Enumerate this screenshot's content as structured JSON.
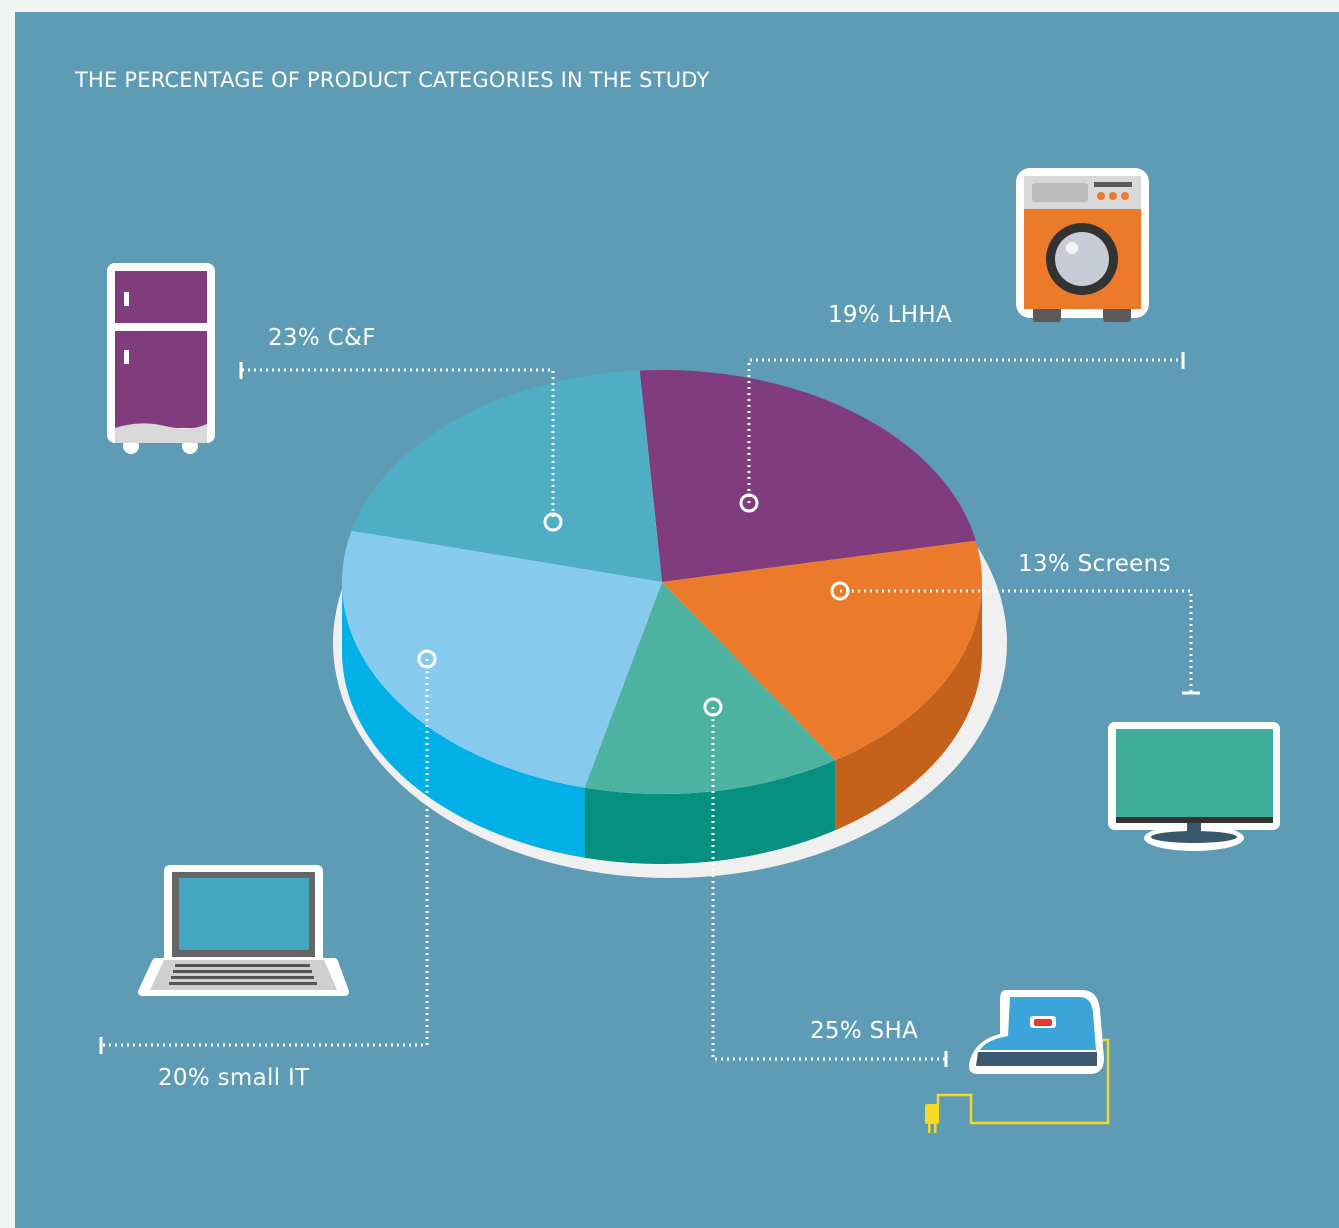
{
  "title": "THE PERCENTAGE OF PRODUCT CATEGORIES IN THE STUDY",
  "chart_data": {
    "type": "pie",
    "style": "3d",
    "title": "THE PERCENTAGE OF PRODUCT CATEGORIES IN THE STUDY",
    "slices": [
      {
        "key": "cf",
        "label": "23% C&F",
        "category": "C&F",
        "value": 23,
        "color": "#813c7e",
        "side": "#6a2d68",
        "icon": "fridge-icon"
      },
      {
        "key": "lhha",
        "label": "19% LHHA",
        "category": "LHHA",
        "value": 19,
        "color": "#eb7b2a",
        "side": "#c4621c",
        "icon": "washing-machine-icon"
      },
      {
        "key": "screens",
        "label": "13% Screens",
        "category": "Screens",
        "value": 13,
        "color": "#4db29f",
        "side": "#05907f",
        "icon": "monitor-icon"
      },
      {
        "key": "sha",
        "label": "25% SHA",
        "category": "SHA",
        "value": 25,
        "color": "#86caee",
        "side": "#00b0e6",
        "icon": "iron-icon"
      },
      {
        "key": "smallit",
        "label": "20% small IT",
        "category": "small IT",
        "value": 20,
        "color": "#4faec4",
        "side": "#008cab",
        "icon": "laptop-icon"
      }
    ],
    "legend": "callout labels"
  }
}
